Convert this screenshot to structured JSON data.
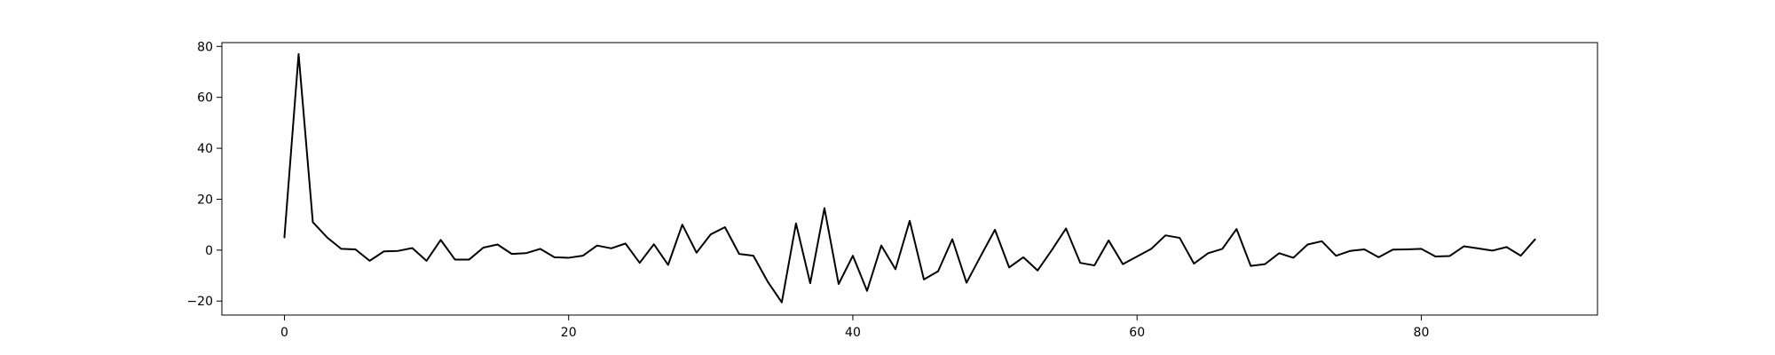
{
  "chart_data": {
    "type": "line",
    "title": "",
    "xlabel": "",
    "ylabel": "",
    "grid": false,
    "xlim": [
      -4.4,
      92.4
    ],
    "ylim": [
      -25.5,
      81.5
    ],
    "xticks": [
      0,
      20,
      40,
      60,
      80
    ],
    "yticks": [
      -20,
      0,
      20,
      40,
      60,
      80
    ],
    "line_color": "#000000",
    "series": [
      {
        "x": [
          0,
          1,
          2,
          3,
          4,
          5,
          6,
          7,
          8,
          9,
          10,
          11,
          12,
          13,
          14,
          15,
          16,
          17,
          18,
          19,
          20,
          21,
          22,
          23,
          24,
          25,
          26,
          27,
          28,
          29,
          30,
          31,
          32,
          33,
          34,
          35,
          36,
          37,
          38,
          39,
          40,
          41,
          42,
          43,
          44,
          45,
          46,
          47,
          48,
          49,
          50,
          51,
          52,
          53,
          54,
          55,
          56,
          57,
          58,
          59,
          60,
          61,
          62,
          63,
          64,
          65,
          66,
          67,
          68,
          69,
          70,
          71,
          72,
          73,
          74,
          75,
          76,
          77,
          78,
          79,
          80,
          81,
          82,
          83,
          84,
          85,
          86,
          87,
          88
        ],
        "values": [
          5,
          77,
          11,
          5,
          0.5,
          0.3,
          -4.2,
          -0.5,
          -0.3,
          0.8,
          -4.2,
          4,
          -3.7,
          -3.7,
          1,
          2.2,
          -1.5,
          -1.2,
          0.5,
          -2.8,
          -3,
          -2.2,
          1.8,
          0.7,
          2.6,
          -5,
          2.3,
          -5.8,
          10,
          -1,
          6.2,
          9,
          -1.5,
          -2.2,
          -12.3,
          -20.5,
          10.5,
          -13,
          16.5,
          -13.3,
          -2.2,
          -16,
          1.8,
          -7.5,
          11.5,
          -11.5,
          -8.3,
          4.3,
          -12.8,
          -2.3,
          8,
          -6.8,
          -2.8,
          -8,
          0,
          8.5,
          -5,
          -6,
          3.8,
          -5.5,
          -2.5,
          0.5,
          5.8,
          4.8,
          -5.3,
          -1.2,
          0.5,
          8.3,
          -6.2,
          -5.5,
          -1.2,
          -3,
          2.2,
          3.5,
          -2.2,
          -0.3,
          0.3,
          -2.8,
          0.2,
          0.3,
          0.5,
          -2.5,
          -2.3,
          1.5,
          0.7,
          -0.2,
          1.2,
          -2.2,
          4.2
        ]
      }
    ]
  }
}
